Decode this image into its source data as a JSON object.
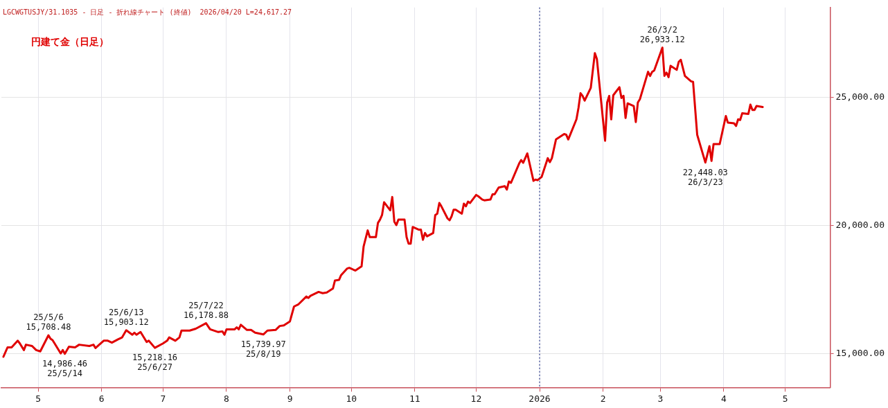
{
  "chart_data": {
    "type": "line",
    "title": "円建て金（日足）",
    "subtitle": "LGCWGTUSJY/31.1035 - 日足 - 折れ線チャート (終値)  2026/04/20 L=24,617.27",
    "series": [
      {
        "color": "#e00000",
        "x": [
          "2025-04-14",
          "2025-04-16",
          "2025-04-18",
          "2025-04-21",
          "2025-04-22",
          "2025-04-24",
          "2025-04-25",
          "2025-04-28",
          "2025-04-30",
          "2025-05-02",
          "2025-05-06",
          "2025-05-07",
          "2025-05-08",
          "2025-05-09",
          "2025-05-12",
          "2025-05-13",
          "2025-05-14",
          "2025-05-16",
          "2025-05-19",
          "2025-05-21",
          "2025-05-26",
          "2025-05-28",
          "2025-05-29",
          "2025-06-02",
          "2025-06-04",
          "2025-06-06",
          "2025-06-09",
          "2025-06-11",
          "2025-06-13",
          "2025-06-16",
          "2025-06-17",
          "2025-06-18",
          "2025-06-20",
          "2025-06-23",
          "2025-06-24",
          "2025-06-27",
          "2025-07-01",
          "2025-07-03",
          "2025-07-04",
          "2025-07-07",
          "2025-07-09",
          "2025-07-10",
          "2025-07-14",
          "2025-07-17",
          "2025-07-22",
          "2025-07-24",
          "2025-07-28",
          "2025-07-30",
          "2025-07-31",
          "2025-08-01",
          "2025-08-05",
          "2025-08-06",
          "2025-08-07",
          "2025-08-08",
          "2025-08-11",
          "2025-08-13",
          "2025-08-15",
          "2025-08-19",
          "2025-08-21",
          "2025-08-25",
          "2025-08-27",
          "2025-08-29",
          "2025-09-01",
          "2025-09-03",
          "2025-09-05",
          "2025-09-09",
          "2025-09-10",
          "2025-09-11",
          "2025-09-15",
          "2025-09-17",
          "2025-09-19",
          "2025-09-22",
          "2025-09-23",
          "2025-09-25",
          "2025-09-26",
          "2025-09-29",
          "2025-09-30",
          "2025-10-03",
          "2025-10-06",
          "2025-10-07",
          "2025-10-09",
          "2025-10-10",
          "2025-10-13",
          "2025-10-14",
          "2025-10-15",
          "2025-10-16",
          "2025-10-17",
          "2025-10-20",
          "2025-10-21",
          "2025-10-22",
          "2025-10-23",
          "2025-10-24",
          "2025-10-27",
          "2025-10-28",
          "2025-10-29",
          "2025-10-30",
          "2025-10-31",
          "2025-11-03",
          "2025-11-04",
          "2025-11-05",
          "2025-11-06",
          "2025-11-07",
          "2025-11-10",
          "2025-11-11",
          "2025-11-12",
          "2025-11-13",
          "2025-11-14",
          "2025-11-17",
          "2025-11-18",
          "2025-11-19",
          "2025-11-20",
          "2025-11-21",
          "2025-11-24",
          "2025-11-25",
          "2025-11-26",
          "2025-11-27",
          "2025-11-28",
          "2025-12-01",
          "2025-12-02",
          "2025-12-04",
          "2025-12-05",
          "2025-12-08",
          "2025-12-09",
          "2025-12-10",
          "2025-12-12",
          "2025-12-15",
          "2025-12-16",
          "2025-12-17",
          "2025-12-18",
          "2025-12-22",
          "2025-12-23",
          "2025-12-24",
          "2025-12-26",
          "2025-12-29",
          "2025-12-30",
          "2025-12-31",
          "2026-01-02",
          "2026-01-05",
          "2026-01-06",
          "2026-01-07",
          "2026-01-09",
          "2026-01-13",
          "2026-01-14",
          "2026-01-15",
          "2026-01-19",
          "2026-01-20",
          "2026-01-21",
          "2026-01-22",
          "2026-01-23",
          "2026-01-26",
          "2026-01-28",
          "2026-01-29",
          "2026-02-02",
          "2026-02-03",
          "2026-02-04",
          "2026-02-05",
          "2026-02-06",
          "2026-02-09",
          "2026-02-10",
          "2026-02-11",
          "2026-02-12",
          "2026-02-13",
          "2026-02-16",
          "2026-02-17",
          "2026-02-18",
          "2026-02-19",
          "2026-02-23",
          "2026-02-24",
          "2026-02-25",
          "2026-02-26",
          "2026-03-02",
          "2026-03-03",
          "2026-03-04",
          "2026-03-05",
          "2026-03-06",
          "2026-03-09",
          "2026-03-10",
          "2026-03-11",
          "2026-03-13",
          "2026-03-16",
          "2026-03-17",
          "2026-03-19",
          "2026-03-23",
          "2026-03-25",
          "2026-03-26",
          "2026-03-27",
          "2026-03-30",
          "2026-04-02",
          "2026-04-03",
          "2026-04-06",
          "2026-04-07",
          "2026-04-08",
          "2026-04-09",
          "2026-04-10",
          "2026-04-13",
          "2026-04-14",
          "2026-04-15",
          "2026-04-16",
          "2026-04-17",
          "2026-04-20"
        ],
        "values": [
          14870,
          15235,
          15235,
          15496,
          15390,
          15130,
          15340,
          15290,
          15130,
          15080,
          15708.48,
          15575,
          15520,
          15390,
          15000,
          15130,
          14986.46,
          15260,
          15235,
          15340,
          15290,
          15340,
          15210,
          15496,
          15496,
          15420,
          15550,
          15625,
          15903.12,
          15730,
          15810,
          15730,
          15835,
          15445,
          15496,
          15218.16,
          15390,
          15496,
          15625,
          15496,
          15625,
          15890,
          15890,
          15965,
          16178.88,
          15940,
          15835,
          15860,
          15730,
          15940,
          15940,
          16020,
          15940,
          16120,
          15915,
          15915,
          15810,
          15739.97,
          15890,
          15915,
          16070,
          16095,
          16250,
          16830,
          16905,
          17220,
          17165,
          17245,
          17400,
          17350,
          17375,
          17530,
          17845,
          17870,
          18055,
          18315,
          18340,
          18235,
          18395,
          19175,
          19800,
          19540,
          19540,
          20090,
          20220,
          20400,
          20900,
          20585,
          21105,
          20140,
          20010,
          20220,
          20220,
          19540,
          19280,
          19280,
          19935,
          19830,
          19830,
          19435,
          19700,
          19570,
          19700,
          20400,
          20455,
          20870,
          20740,
          20270,
          20195,
          20350,
          20610,
          20610,
          20455,
          20845,
          20740,
          20925,
          20870,
          21185,
          21135,
          21005,
          20975,
          21005,
          21210,
          21210,
          21475,
          21525,
          21395,
          21710,
          21655,
          22410,
          22545,
          22440,
          22805,
          21735,
          21785,
          21760,
          21890,
          22620,
          22465,
          22620,
          23350,
          23560,
          23535,
          23350,
          24135,
          24580,
          25155,
          25050,
          24865,
          25360,
          26720,
          26485,
          23300,
          24790,
          25050,
          24135,
          25075,
          25390,
          24970,
          25050,
          24190,
          24760,
          24655,
          24030,
          24790,
          24920,
          25990,
          25830,
          25990,
          26040,
          26933.12,
          25830,
          25960,
          25780,
          26225,
          26065,
          26380,
          26460,
          25830,
          25620,
          25595,
          23535,
          22448.03,
          23090,
          22515,
          23170,
          23170,
          24265,
          24005,
          23980,
          23875,
          24135,
          24110,
          24370,
          24345,
          24710,
          24500,
          24500,
          24655,
          24617.27
        ]
      }
    ],
    "xlim": [
      "2025-04-13",
      "2026-05-23"
    ],
    "xticks": [
      {
        "value": "2025-05-01",
        "label": "5"
      },
      {
        "value": "2025-06-01",
        "label": "6"
      },
      {
        "value": "2025-07-01",
        "label": "7"
      },
      {
        "value": "2025-08-01",
        "label": "8"
      },
      {
        "value": "2025-09-01",
        "label": "9"
      },
      {
        "value": "2025-10-01",
        "label": "10"
      },
      {
        "value": "2025-11-01",
        "label": "11"
      },
      {
        "value": "2025-12-01",
        "label": "12"
      },
      {
        "value": "2026-01-01",
        "label": "2026"
      },
      {
        "value": "2026-02-01",
        "label": "2"
      },
      {
        "value": "2026-03-01",
        "label": "3"
      },
      {
        "value": "2026-04-01",
        "label": "4"
      },
      {
        "value": "2026-05-01",
        "label": "5"
      }
    ],
    "ylim": [
      13670,
      28500
    ],
    "yticks": [
      {
        "value": 15000,
        "label": "15,000.00"
      },
      {
        "value": 20000,
        "label": "20,000.00"
      },
      {
        "value": 25000,
        "label": "25,000.00"
      }
    ],
    "grid": true,
    "ref_lines": [
      {
        "axis": "x",
        "value": "2026-01-01",
        "color": "#2a3a8a",
        "line_style": "dotted"
      }
    ],
    "annotations": [
      {
        "text": "25/5/6\n15,708.48",
        "x": "2025-05-06",
        "y": 15708.48
      },
      {
        "text": "14,986.46\n25/5/14",
        "x": "2025-05-14",
        "y": 14986.46
      },
      {
        "text": "25/6/13\n15,903.12",
        "x": "2025-06-13",
        "y": 15903.12
      },
      {
        "text": "15,218.16\n25/6/27",
        "x": "2025-06-27",
        "y": 15218.16
      },
      {
        "text": "25/7/22\n16,178.88",
        "x": "2025-07-22",
        "y": 16178.88
      },
      {
        "text": "15,739.97\n25/8/19",
        "x": "2025-08-19",
        "y": 15739.97
      },
      {
        "text": "26/3/2\n26,933.12",
        "x": "2026-03-02",
        "y": 26933.12
      },
      {
        "text": "22,448.03\n26/3/23",
        "x": "2026-03-23",
        "y": 22448.03
      }
    ]
  }
}
